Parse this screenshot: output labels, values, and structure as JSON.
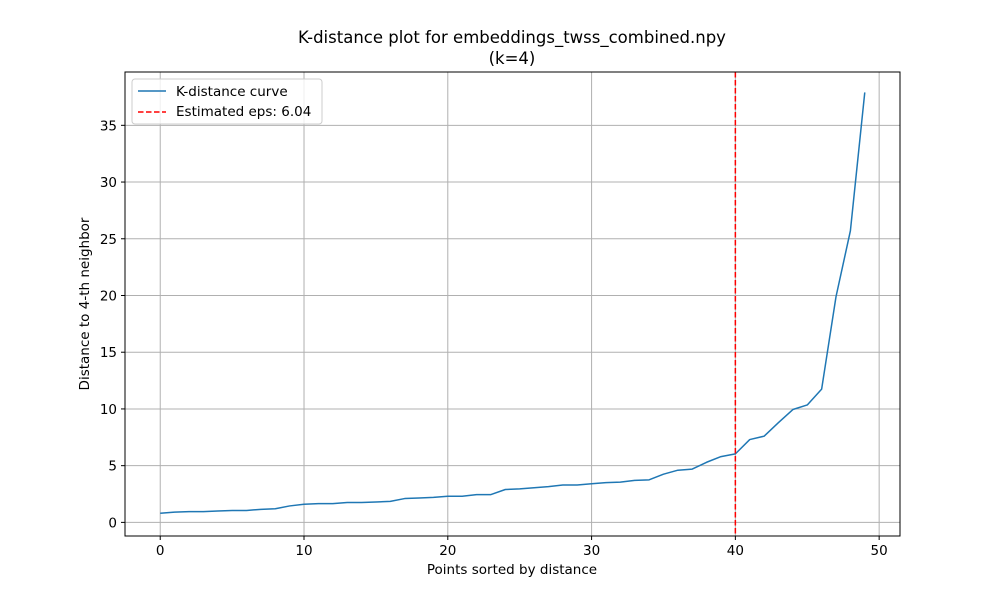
{
  "chart_data": {
    "type": "line",
    "title": "K-distance plot for embeddings_twss_combined.npy",
    "subtitle": "(k=4)",
    "xlabel": "Points sorted by distance",
    "ylabel": "Distance to 4-th neighbor",
    "xlim": [
      -2.45,
      51.45
    ],
    "ylim": [
      -1.2,
      39.7
    ],
    "xticks": [
      0,
      10,
      20,
      30,
      40,
      50
    ],
    "yticks": [
      0,
      5,
      10,
      15,
      20,
      25,
      30,
      35
    ],
    "grid": true,
    "legend_position": "upper-left",
    "series": [
      {
        "name": "K-distance curve",
        "color": "#1f77b4",
        "x": [
          0,
          1,
          2,
          3,
          4,
          5,
          6,
          7,
          8,
          9,
          10,
          11,
          12,
          13,
          14,
          15,
          16,
          17,
          18,
          19,
          20,
          21,
          22,
          23,
          24,
          25,
          26,
          27,
          28,
          29,
          30,
          31,
          32,
          33,
          34,
          35,
          36,
          37,
          38,
          39,
          40,
          41,
          42,
          43,
          44,
          45,
          46,
          47,
          48,
          49
        ],
        "y": [
          0.8,
          0.9,
          0.95,
          0.95,
          1.0,
          1.05,
          1.05,
          1.15,
          1.2,
          1.45,
          1.6,
          1.65,
          1.65,
          1.75,
          1.75,
          1.8,
          1.85,
          2.1,
          2.15,
          2.2,
          2.3,
          2.3,
          2.45,
          2.45,
          2.9,
          2.95,
          3.05,
          3.15,
          3.3,
          3.3,
          3.4,
          3.5,
          3.55,
          3.7,
          3.75,
          4.25,
          4.6,
          4.7,
          5.3,
          5.8,
          6.04,
          7.3,
          7.6,
          8.8,
          9.95,
          10.35,
          11.75,
          19.9,
          25.7,
          37.9
        ]
      }
    ],
    "vline": {
      "name": "Estimated eps: 6.04",
      "x": 40,
      "color": "#ff0000"
    }
  }
}
